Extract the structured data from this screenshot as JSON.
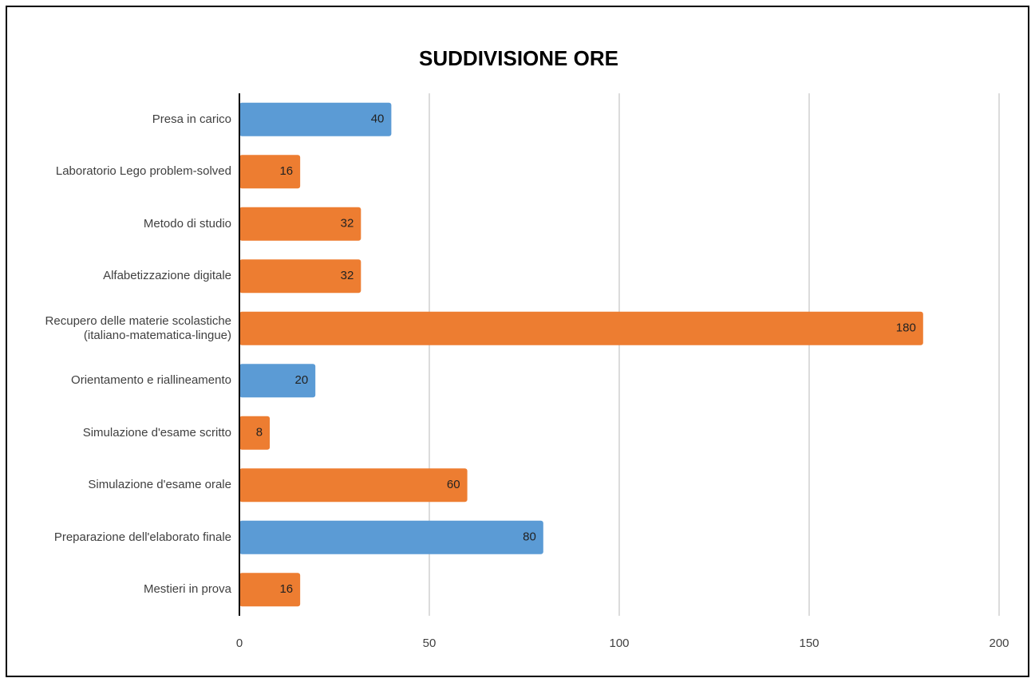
{
  "chart_data": {
    "type": "bar",
    "orientation": "horizontal",
    "title": "SUDDIVISIONE ORE",
    "categories": [
      "Presa in carico",
      "Laboratorio Lego problem-solved",
      "Metodo di studio",
      "Alfabetizzazione digitale",
      "Recupero delle materie scolastiche (italiano-matematica-lingue)",
      "Orientamento e riallineamento",
      "Simulazione d'esame scritto",
      "Simulazione d'esame orale",
      "Preparazione dell'elaborato finale",
      "Mestieri in prova"
    ],
    "values": [
      40,
      16,
      32,
      32,
      180,
      20,
      8,
      60,
      80,
      16
    ],
    "colors": [
      "#5b9bd5",
      "#ed7d31",
      "#ed7d31",
      "#ed7d31",
      "#ed7d31",
      "#5b9bd5",
      "#ed7d31",
      "#ed7d31",
      "#5b9bd5",
      "#ed7d31"
    ],
    "xlim": [
      0,
      200
    ],
    "xticks": [
      0,
      50,
      100,
      150,
      200
    ],
    "grid": true
  }
}
